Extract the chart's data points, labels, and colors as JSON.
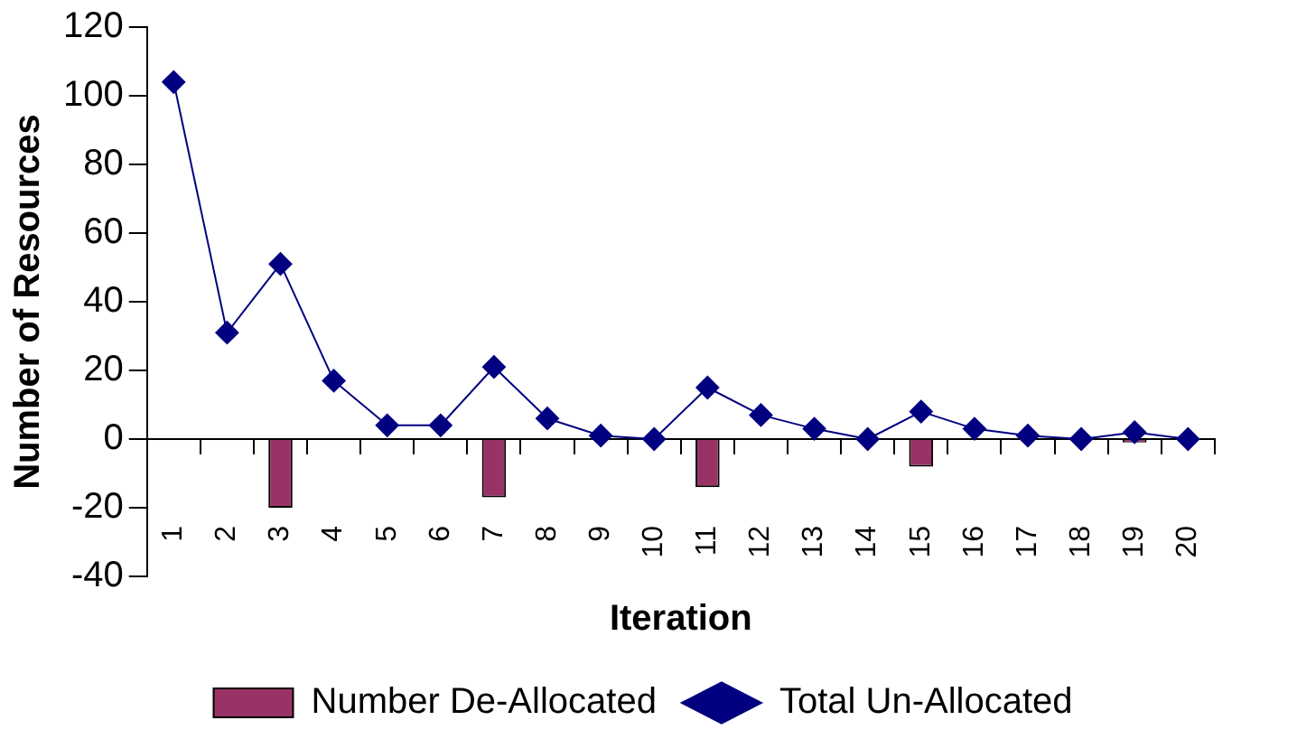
{
  "chart_data": {
    "type": "bar",
    "xlabel": "Iteration",
    "ylabel": "Number of Resources",
    "categories": [
      "1",
      "2",
      "3",
      "4",
      "5",
      "6",
      "7",
      "8",
      "9",
      "10",
      "11",
      "12",
      "13",
      "14",
      "15",
      "16",
      "17",
      "18",
      "19",
      "20"
    ],
    "series": [
      {
        "name": "Number De-Allocated",
        "color": "#993366",
        "values": [
          0,
          0,
          -20,
          0,
          0,
          0,
          -17,
          0,
          0,
          0,
          -14,
          0,
          0,
          0,
          -8,
          0,
          0,
          0,
          -1,
          0
        ]
      },
      {
        "name": "Total Un-Allocated",
        "type": "line",
        "color": "#000080",
        "values": [
          104,
          31,
          51,
          17,
          4,
          4,
          21,
          6,
          1,
          0,
          15,
          7,
          3,
          0,
          8,
          3,
          1,
          0,
          2,
          0
        ]
      }
    ],
    "ylim": [
      -40,
      120
    ],
    "yticks": [
      -40,
      -20,
      0,
      20,
      40,
      60,
      80,
      100,
      120
    ],
    "legend": "bottom",
    "marker": "diamond",
    "line_style": "solid"
  }
}
